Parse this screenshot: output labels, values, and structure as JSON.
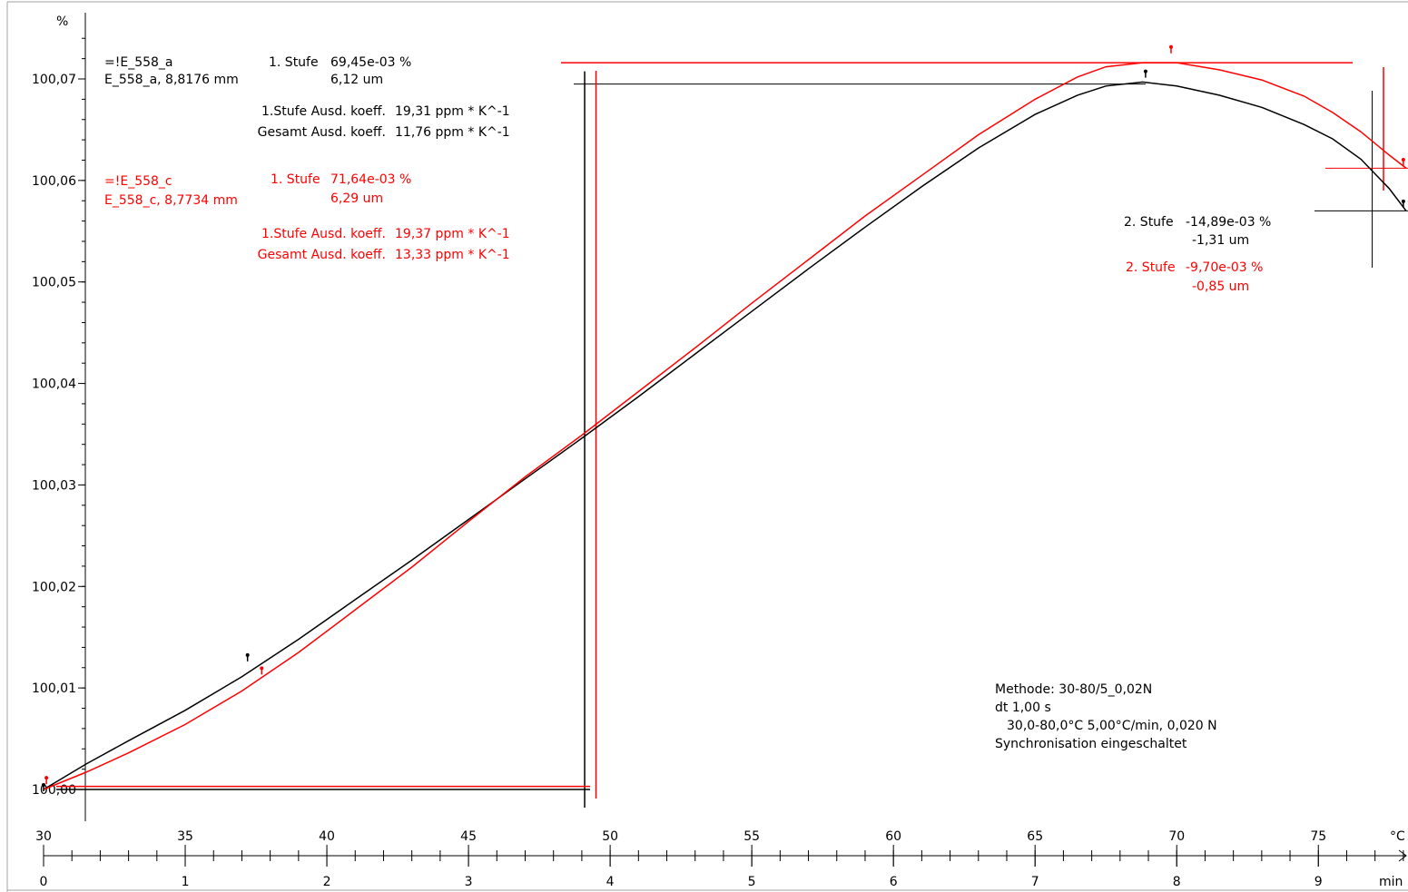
{
  "chart_data": {
    "type": "line",
    "title": "",
    "ylabel": "%",
    "xlabel_temp": "°C",
    "xlabel_time": "min",
    "ylim": [
      100.0,
      100.0745
    ],
    "xlim_temp": [
      30,
      78.1
    ],
    "xlim_time": [
      0,
      9.62
    ],
    "y_ticks": [
      {
        "v": 100.0,
        "label": "100,00"
      },
      {
        "v": 100.01,
        "label": "100,01"
      },
      {
        "v": 100.02,
        "label": "100,02"
      },
      {
        "v": 100.03,
        "label": "100,03"
      },
      {
        "v": 100.04,
        "label": "100,04"
      },
      {
        "v": 100.05,
        "label": "100,05"
      },
      {
        "v": 100.06,
        "label": "100,06"
      },
      {
        "v": 100.07,
        "label": "100,07"
      }
    ],
    "temp_ticks": [
      {
        "v": 30,
        "label": "30"
      },
      {
        "v": 35,
        "label": "35"
      },
      {
        "v": 40,
        "label": "40"
      },
      {
        "v": 45,
        "label": "45"
      },
      {
        "v": 50,
        "label": "50"
      },
      {
        "v": 55,
        "label": "55"
      },
      {
        "v": 60,
        "label": "60"
      },
      {
        "v": 65,
        "label": "65"
      },
      {
        "v": 70,
        "label": "70"
      },
      {
        "v": 75,
        "label": "75"
      }
    ],
    "time_ticks": [
      {
        "v": 0,
        "label": "0"
      },
      {
        "v": 1,
        "label": "1"
      },
      {
        "v": 2,
        "label": "2"
      },
      {
        "v": 3,
        "label": "3"
      },
      {
        "v": 4,
        "label": "4"
      },
      {
        "v": 5,
        "label": "5"
      },
      {
        "v": 6,
        "label": "6"
      },
      {
        "v": 7,
        "label": "7"
      },
      {
        "v": 8,
        "label": "8"
      },
      {
        "v": 9,
        "label": "9"
      }
    ],
    "series": [
      {
        "name": "=!E_558_a",
        "color": "#000000",
        "x": [
          30,
          31.5,
          33,
          35,
          37,
          39,
          41,
          43,
          45,
          47,
          49,
          51,
          53,
          55,
          57,
          59,
          61,
          63,
          65,
          66.5,
          67.5,
          68.8,
          70,
          71.5,
          73,
          74.5,
          75.5,
          76.5,
          77.5,
          78.1
        ],
        "y": [
          100.0,
          100.0025,
          100.0048,
          100.0078,
          100.0111,
          100.0148,
          100.0187,
          100.0226,
          100.0266,
          100.0306,
          100.0346,
          100.0387,
          100.0429,
          100.0471,
          100.0513,
          100.0554,
          100.0594,
          100.0632,
          100.0665,
          100.0684,
          100.0693,
          100.0697,
          100.0693,
          100.0684,
          100.0672,
          100.0655,
          100.0641,
          100.0621,
          100.0592,
          100.057
        ]
      },
      {
        "name": "=!E_558_c",
        "color": "#ff0000",
        "x": [
          30,
          31.5,
          33,
          35,
          37,
          39,
          41,
          43,
          45,
          47,
          49,
          51,
          53,
          55,
          57,
          59,
          61,
          63,
          65,
          66.5,
          67.5,
          68.8,
          70,
          71.5,
          73,
          74.5,
          75.5,
          76.5,
          77.5,
          78.1
        ],
        "y": [
          100.0,
          100.0017,
          100.0036,
          100.0064,
          100.0097,
          100.0135,
          100.0177,
          100.0219,
          100.0264,
          100.0308,
          100.0349,
          100.0392,
          100.0435,
          100.0479,
          100.0522,
          100.0565,
          100.0605,
          100.0645,
          100.068,
          100.0702,
          100.0712,
          100.0716,
          100.0716,
          100.0709,
          100.0699,
          100.0683,
          100.0667,
          100.0648,
          100.0625,
          100.0612
        ]
      }
    ],
    "markers": {
      "black_start": {
        "x": 30.0,
        "y": 100.0
      },
      "black_mid": {
        "x": 37.2,
        "y": 100.0128
      },
      "black_peak": {
        "x": 68.9,
        "y": 100.0703
      },
      "black_end": {
        "x": 78.0,
        "y": 100.0575
      },
      "red_start": {
        "x": 30.1,
        "y": 100.0007
      },
      "red_mid": {
        "x": 37.7,
        "y": 100.0115
      },
      "red_peak": {
        "x": 69.8,
        "y": 100.0727
      },
      "red_end": {
        "x": 78.0,
        "y": 100.0616
      }
    },
    "step_lines": {
      "black": {
        "x_step": 49.1,
        "y_low": 100.0,
        "y_high": 100.0695,
        "x_step2": 76.9,
        "y_step2": 100.057
      },
      "red": {
        "x_step": 49.5,
        "y_low": 100.0003,
        "y_high": 100.0716,
        "x_step2": 77.3,
        "y_step2": 100.0612
      }
    },
    "annotations": {
      "a_name": "=!E_558_a",
      "a_sample": "E_558_a, 8,8176 mm",
      "a_step1_label": "1. Stufe",
      "a_step1_pct": "69,45e-03 %",
      "a_step1_um": "6,12 um",
      "a_coeff1_label": "1.Stufe Ausd. koeff.",
      "a_coeff1_val": "19,31 ppm * K^-1",
      "a_total_label": "Gesamt Ausd. koeff.",
      "a_total_val": "11,76 ppm * K^-1",
      "c_name": "=!E_558_c",
      "c_sample": "E_558_c, 8,7734 mm",
      "c_step1_label": "1. Stufe",
      "c_step1_pct": "71,64e-03 %",
      "c_step1_um": "6,29 um",
      "c_coeff1_label": "1.Stufe Ausd. koeff.",
      "c_coeff1_val": "19,37 ppm * K^-1",
      "c_total_label": "Gesamt Ausd. koeff.",
      "c_total_val": "13,33 ppm * K^-1",
      "a_step2_label": "2. Stufe",
      "a_step2_pct": "-14,89e-03 %",
      "a_step2_um": "-1,31 um",
      "c_step2_label": "2. Stufe",
      "c_step2_pct": "-9,70e-03 %",
      "c_step2_um": "-0,85 um",
      "method_line1": "Methode: 30-80/5_0,02N",
      "method_line2": "dt 1,00 s",
      "method_line3": "30,0-80,0°C 5,00°C/min,  0,020 N",
      "method_line4": "Synchronisation eingeschaltet"
    }
  }
}
